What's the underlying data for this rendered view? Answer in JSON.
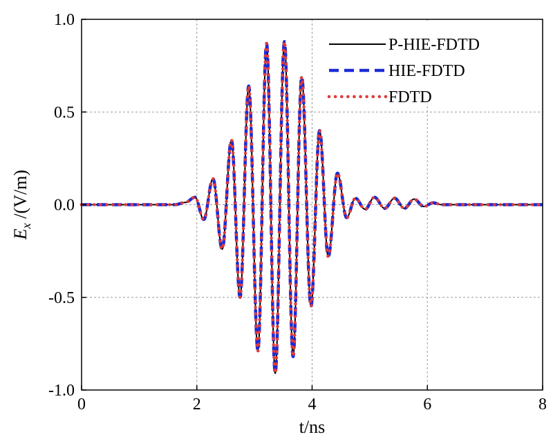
{
  "chart_data": {
    "type": "line",
    "title": "",
    "xlabel": "t/ns",
    "ylabel_main": "E",
    "ylabel_sub": "x",
    "ylabel_unit": " /(V/m)",
    "xlim": [
      0,
      8
    ],
    "ylim": [
      -1.0,
      1.0
    ],
    "xticks": [
      0,
      2,
      4,
      6,
      8
    ],
    "xtick_labels": [
      "0",
      "2",
      "4",
      "6",
      "8"
    ],
    "yticks": [
      -1.0,
      -0.5,
      0.0,
      0.5,
      1.0
    ],
    "ytick_labels": [
      "-1.0",
      "-0.5",
      "0.0",
      "0.5",
      "1.0"
    ],
    "grid": true,
    "legend_position": "top-right",
    "extrema_t": [
      1.62,
      1.8,
      1.97,
      2.12,
      2.28,
      2.44,
      2.6,
      2.75,
      2.9,
      3.06,
      3.21,
      3.36,
      3.52,
      3.67,
      3.82,
      3.98,
      4.13,
      4.28,
      4.44,
      4.6,
      4.75,
      4.92,
      5.08,
      5.26,
      5.43,
      5.6,
      5.77,
      5.94,
      6.1,
      6.25
    ],
    "extrema_ex": [
      0.0,
      0.012,
      0.04,
      -0.08,
      0.14,
      -0.24,
      0.35,
      -0.5,
      0.64,
      -0.79,
      0.87,
      -0.91,
      0.88,
      -0.82,
      0.69,
      -0.55,
      0.4,
      -0.28,
      0.17,
      -0.07,
      0.035,
      -0.025,
      0.04,
      -0.02,
      0.035,
      -0.02,
      0.03,
      -0.01,
      0.01,
      0.0
    ],
    "series": [
      {
        "name": "P-HIE-FDTD",
        "color": "#000000",
        "style": "solid"
      },
      {
        "name": "HIE-FDTD",
        "color": "#1a2bd6",
        "style": "dashed"
      },
      {
        "name": "FDTD",
        "color": "#e03a3a",
        "style": "dotted"
      }
    ]
  }
}
